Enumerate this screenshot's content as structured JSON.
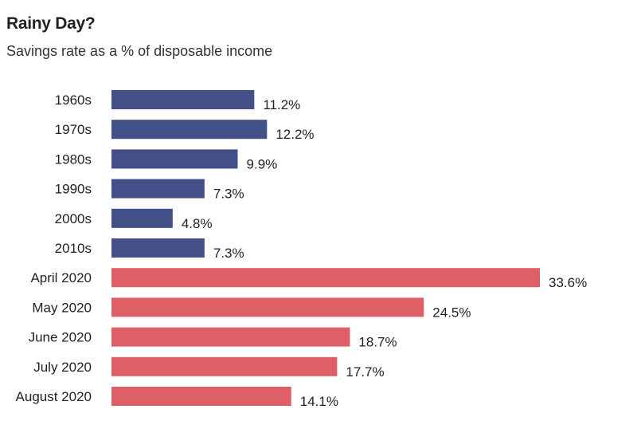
{
  "chart_data": {
    "type": "bar",
    "orientation": "horizontal",
    "title": "Rainy Day?",
    "subtitle": "Savings rate as a % of disposable income",
    "categories": [
      "1960s",
      "1970s",
      "1980s",
      "1990s",
      "2000s",
      "2010s",
      "April 2020",
      "May 2020",
      "June 2020",
      "July 2020",
      "August 2020"
    ],
    "values": [
      11.2,
      12.2,
      9.9,
      7.3,
      4.8,
      7.3,
      33.6,
      24.5,
      18.7,
      17.7,
      14.1
    ],
    "value_labels": [
      "11.2%",
      "12.2%",
      "9.9%",
      "7.3%",
      "4.8%",
      "7.3%",
      "33.6%",
      "24.5%",
      "18.7%",
      "17.7%",
      "14.1%"
    ],
    "colors": [
      "#435088",
      "#435088",
      "#435088",
      "#435088",
      "#435088",
      "#435088",
      "#de5f66",
      "#de5f66",
      "#de5f66",
      "#de5f66",
      "#de5f66"
    ],
    "xlim": [
      0,
      33.6
    ],
    "grid": false,
    "legend": "none",
    "xlabel": "",
    "ylabel": ""
  }
}
